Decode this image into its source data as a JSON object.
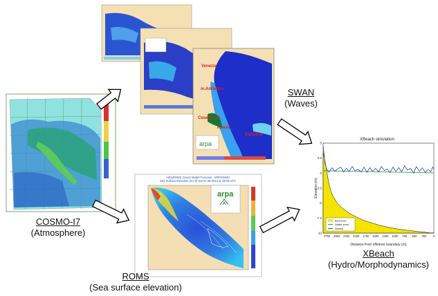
{
  "models": {
    "cosmo": {
      "name": "COSMO-I7",
      "desc": "(Atmosphere)"
    },
    "swan": {
      "name": "SWAN",
      "desc": "(Waves)"
    },
    "roms": {
      "name": "ROMS",
      "desc": "(Sea surface elevation)"
    },
    "xbeach": {
      "name": "XBeach",
      "desc": "(Hydro/Morphodynamics)"
    }
  },
  "roms_map": {
    "title_line1": "AdriaROMS Ocean Model Forecast - ARPA/SIMC",
    "title_line2": "Sea Surface Elevation (m) @ Sat 07.06.2014 at 19:00 UTC",
    "logo": "arpa"
  },
  "swan_map": {
    "logo": "arpa",
    "places": [
      "Venezia",
      "m.Adriatico",
      "Cesenatico",
      "Rimini",
      "Cattolica"
    ]
  },
  "xbeach_chart": {
    "title": "XBeach simulation",
    "xlabel": "Distance from offshore boundary (m)",
    "ylabel": "Elevation (m)",
    "legend": [
      "Bed level",
      "Water level",
      "Waves"
    ],
    "legend_colors": [
      "#f5e400",
      "#1db51d",
      "#2b3bd6"
    ],
    "y_ticks": [
      "5",
      "2.5",
      "0",
      "-2.5",
      "-5",
      "-7.5",
      "-10"
    ],
    "x_ticks": [
      "2750",
      "2500",
      "2250",
      "2000",
      "1750",
      "1500",
      "1250",
      "1000",
      "750",
      "500",
      "250",
      "0"
    ]
  },
  "chart_data": {
    "type": "line",
    "title": "XBeach simulation",
    "xlabel": "Distance from offshore boundary (m)",
    "ylabel": "Elevation (m)",
    "xlim": [
      2850,
      0
    ],
    "ylim": [
      -10,
      5
    ],
    "series": [
      {
        "name": "Bed level",
        "x": [
          2850,
          2800,
          2750,
          2700,
          2650,
          2600,
          2500,
          2400,
          2300,
          2200,
          2000,
          1800,
          1600,
          1400,
          1200,
          1000,
          800,
          600,
          400,
          250,
          120,
          60,
          0
        ],
        "y": [
          3.4,
          2.0,
          0.0,
          -1.8,
          -3.0,
          -3.8,
          -4.9,
          -5.6,
          -6.1,
          -6.6,
          -7.3,
          -7.9,
          -8.3,
          -8.7,
          -9.0,
          -9.25,
          -9.45,
          -9.6,
          -9.75,
          -9.85,
          -9.95,
          -10,
          -10
        ]
      },
      {
        "name": "Water level",
        "x": [
          2850,
          0
        ],
        "y": [
          0.4,
          0.05
        ]
      },
      {
        "name": "Waves",
        "x": [
          2850,
          2800,
          2750,
          2700,
          2620,
          2550,
          2480,
          2400,
          2320,
          2250,
          2180,
          2100,
          2030,
          1950,
          1870,
          1800,
          1720,
          1650,
          1580,
          1500,
          1420,
          1350,
          1270,
          1200,
          1130,
          1050,
          980,
          900,
          830,
          750,
          680,
          600,
          520,
          450,
          370,
          300,
          220,
          150,
          80,
          30,
          0
        ],
        "y": [
          4.6,
          1.6,
          0.5,
          0.2,
          0.9,
          0.3,
          0.7,
          1.0,
          0.2,
          0.8,
          0.3,
          1.1,
          0.4,
          0.6,
          0.2,
          1.0,
          0.1,
          0.9,
          0.3,
          0.8,
          0.2,
          1.1,
          0.4,
          0.7,
          0.1,
          1.0,
          0.3,
          0.9,
          0.2,
          1.2,
          0.5,
          0.8,
          0.0,
          1.1,
          0.3,
          0.9,
          0.1,
          0.6,
          0.2,
          1.0,
          0.7
        ]
      }
    ]
  }
}
